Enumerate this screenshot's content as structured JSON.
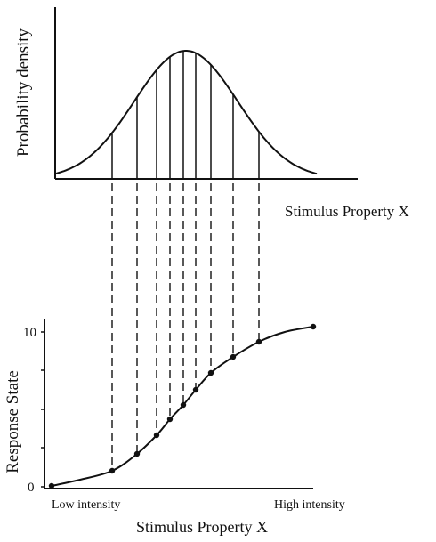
{
  "top_panel": {
    "ylabel": "Probability density",
    "xlabel": "Stimulus Property X",
    "curve": "gaussian",
    "sample_count": 9
  },
  "bottom_panel": {
    "ylabel": "Response State",
    "xlabel": "Stimulus Property X",
    "y_tick_low": "0",
    "y_tick_high": "10",
    "x_low_label": "Low intensity",
    "x_high_label": "High intensity",
    "curve": "sigmoid"
  },
  "colors": {
    "ink": "#111111",
    "background": "#ffffff"
  }
}
